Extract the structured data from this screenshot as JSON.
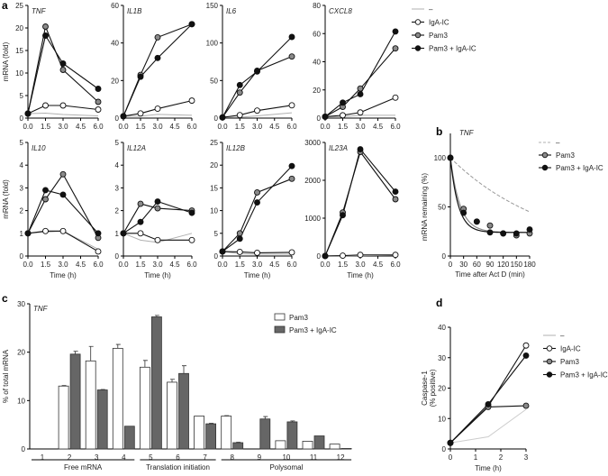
{
  "colors": {
    "none": "#b0b0b0",
    "IgA-IC": "#ffffff",
    "Pam3": "#8a8a8a",
    "Pam3 + IgA-IC": "#111111",
    "bar_pam3": "#ffffff",
    "bar_both": "#666666"
  },
  "panel_labels": [
    "a",
    "b",
    "c",
    "d"
  ],
  "chart_data": [
    {
      "type": "line",
      "panel": "a",
      "gene": "TNF",
      "x": [
        0,
        1.5,
        3,
        6
      ],
      "xticks": [
        "0.0",
        "1.5",
        "3.0",
        "4.5",
        "6.0"
      ],
      "ylim": [
        0,
        25
      ],
      "yticks": [
        0,
        5,
        10,
        15,
        20,
        25
      ],
      "ylabel": "mRNA (fold)",
      "xlabel": "",
      "series": [
        {
          "name": "–",
          "values": [
            1,
            1.1,
            0.8,
            0.5
          ]
        },
        {
          "name": "IgA-IC",
          "values": [
            1,
            2.8,
            2.8,
            1.9
          ]
        },
        {
          "name": "Pam3",
          "values": [
            1,
            20.3,
            10.7,
            3.6
          ]
        },
        {
          "name": "Pam3 + IgA-IC",
          "values": [
            1,
            18.3,
            12.1,
            6.5
          ]
        }
      ]
    },
    {
      "type": "line",
      "panel": "a",
      "gene": "IL1B",
      "x": [
        0,
        1.5,
        3,
        6
      ],
      "xticks": [
        "0.0",
        "1.5",
        "3.0",
        "4.5",
        "6.0"
      ],
      "ylim": [
        0,
        60
      ],
      "yticks": [
        0,
        20,
        40,
        60
      ],
      "ylabel": "",
      "xlabel": "",
      "series": [
        {
          "name": "–",
          "values": [
            1,
            1,
            2,
            1.5
          ]
        },
        {
          "name": "IgA-IC",
          "values": [
            1,
            2.5,
            5,
            9.3
          ]
        },
        {
          "name": "Pam3",
          "values": [
            1,
            23,
            43,
            50
          ]
        },
        {
          "name": "Pam3 + IgA-IC",
          "values": [
            1,
            22,
            32,
            50
          ]
        }
      ]
    },
    {
      "type": "line",
      "panel": "a",
      "gene": "IL6",
      "x": [
        0,
        1.5,
        3,
        6
      ],
      "xticks": [
        "0.0",
        "1.5",
        "3.0",
        "4.5",
        "6.0"
      ],
      "ylim": [
        0,
        150
      ],
      "yticks": [
        0,
        50,
        100,
        150
      ],
      "ylabel": "",
      "xlabel": "",
      "series": [
        {
          "name": "–",
          "values": [
            1,
            1,
            3,
            7
          ]
        },
        {
          "name": "IgA-IC",
          "values": [
            1,
            4,
            10,
            17
          ]
        },
        {
          "name": "Pam3",
          "values": [
            1,
            34,
            63,
            82
          ]
        },
        {
          "name": "Pam3 + IgA-IC",
          "values": [
            1,
            44,
            62,
            108
          ]
        }
      ]
    },
    {
      "type": "line",
      "panel": "a",
      "gene": "CXCL8",
      "x": [
        0,
        1.5,
        3,
        6
      ],
      "xticks": [
        "0.0",
        "1.5",
        "3.0",
        "4.5",
        "6.0"
      ],
      "ylim": [
        0,
        80
      ],
      "yticks": [
        0,
        20,
        40,
        60,
        80
      ],
      "ylabel": "",
      "xlabel": "",
      "series": [
        {
          "name": "–",
          "values": [
            1,
            1,
            2,
            2
          ]
        },
        {
          "name": "IgA-IC",
          "values": [
            1,
            2,
            4,
            14.5
          ]
        },
        {
          "name": "Pam3",
          "values": [
            1,
            8,
            21,
            49.5
          ]
        },
        {
          "name": "Pam3 + IgA-IC",
          "values": [
            1,
            11,
            17,
            61.5
          ]
        }
      ]
    },
    {
      "type": "line",
      "panel": "a",
      "gene": "IL10",
      "x": [
        0,
        1.5,
        3,
        6
      ],
      "xticks": [
        "0.0",
        "1.5",
        "3.0",
        "4.5",
        "6.0"
      ],
      "ylim": [
        0,
        5
      ],
      "yticks": [
        0,
        1,
        2,
        3,
        4,
        5
      ],
      "ylabel": "mRNA (fold)",
      "xlabel": "Time (h)",
      "series": [
        {
          "name": "–",
          "values": [
            1,
            1.05,
            1.1,
            0.3
          ]
        },
        {
          "name": "IgA-IC",
          "values": [
            1,
            1.1,
            1.1,
            0.2
          ]
        },
        {
          "name": "Pam3",
          "values": [
            1,
            2.5,
            3.6,
            0.8
          ]
        },
        {
          "name": "Pam3 + IgA-IC",
          "values": [
            1,
            2.9,
            2.7,
            1
          ]
        }
      ]
    },
    {
      "type": "line",
      "panel": "a",
      "gene": "IL12A",
      "x": [
        0,
        1.5,
        3,
        6
      ],
      "xticks": [
        "0.0",
        "1.5",
        "3.0",
        "4.5",
        "6.0"
      ],
      "ylim": [
        0,
        5
      ],
      "yticks": [
        0,
        1,
        2,
        3,
        4,
        5
      ],
      "ylabel": "",
      "xlabel": "Time (h)",
      "series": [
        {
          "name": "–",
          "values": [
            1,
            0.7,
            0.6,
            1
          ]
        },
        {
          "name": "IgA-IC",
          "values": [
            1,
            1,
            0.7,
            0.7
          ]
        },
        {
          "name": "Pam3",
          "values": [
            1,
            2.3,
            2.1,
            2.0
          ]
        },
        {
          "name": "Pam3 + IgA-IC",
          "values": [
            1,
            1.5,
            2.4,
            1.9
          ]
        }
      ]
    },
    {
      "type": "line",
      "panel": "a",
      "gene": "IL12B",
      "x": [
        0,
        1.5,
        3,
        6
      ],
      "xticks": [
        "0.0",
        "1.5",
        "3.0",
        "4.5",
        "6.0"
      ],
      "ylim": [
        0,
        25
      ],
      "yticks": [
        0,
        5,
        10,
        15,
        20,
        25
      ],
      "ylabel": "",
      "xlabel": "Time (h)",
      "series": [
        {
          "name": "–",
          "values": [
            1,
            0.5,
            0.4,
            0.4
          ]
        },
        {
          "name": "IgA-IC",
          "values": [
            1,
            0.9,
            0.7,
            0.8
          ]
        },
        {
          "name": "Pam3",
          "values": [
            1,
            5,
            14,
            17
          ]
        },
        {
          "name": "Pam3 + IgA-IC",
          "values": [
            1,
            3.8,
            11.8,
            19.8
          ]
        }
      ]
    },
    {
      "type": "line",
      "panel": "a",
      "gene": "IL23A",
      "x": [
        0,
        1.5,
        3,
        6
      ],
      "xticks": [
        "0.0",
        "1.5",
        "3.0",
        "4.5",
        "6.0"
      ],
      "ylim": [
        0,
        3000
      ],
      "yticks": [
        0,
        1000,
        2000,
        3000
      ],
      "ylabel": "",
      "xlabel": "Time (h)",
      "series": [
        {
          "name": "–",
          "values": [
            1,
            5,
            10,
            20
          ]
        },
        {
          "name": "IgA-IC",
          "values": [
            1,
            10,
            30,
            30
          ]
        },
        {
          "name": "Pam3",
          "values": [
            1,
            1150,
            2750,
            1500
          ]
        },
        {
          "name": "Pam3 + IgA-IC",
          "values": [
            1,
            1080,
            2820,
            1700
          ]
        }
      ]
    },
    {
      "type": "scatter",
      "panel": "b",
      "gene": "TNF",
      "x": [
        0,
        30,
        60,
        90,
        120,
        150,
        180
      ],
      "xticks": [
        "0",
        "30",
        "60",
        "90",
        "120",
        "150",
        "180"
      ],
      "ylim": [
        0,
        100
      ],
      "yticks": [
        0,
        50,
        100
      ],
      "ylabel": "mRNA remaining (%)",
      "xlabel": "Time after Act D (min)",
      "series": [
        {
          "name": "–",
          "values": [],
          "fit": "dashed decay to 45% at 180 min"
        },
        {
          "name": "Pam3",
          "values": [
            100,
            48,
            35,
            31,
            23,
            21,
            23
          ]
        },
        {
          "name": "Pam3 + IgA-IC",
          "values": [
            100,
            44,
            35,
            24,
            23,
            23,
            27
          ]
        }
      ]
    },
    {
      "type": "bar",
      "panel": "c",
      "gene": "TNF",
      "categories": [
        "1",
        "2",
        "3",
        "4",
        "5",
        "6",
        "7",
        "8",
        "9",
        "10",
        "11",
        "12"
      ],
      "ylim": [
        0,
        30
      ],
      "yticks": [
        0,
        10,
        20,
        30
      ],
      "ylabel": "% of total mRNA",
      "groups": [
        "Free mRNA",
        "Translation initiation",
        "Polysomal"
      ],
      "series": [
        {
          "name": "Pam3",
          "values": [
            0,
            13,
            18.2,
            20.8,
            16.9,
            13.8,
            6.8,
            6.8,
            0,
            1.7,
            1.6,
            1
          ],
          "errors": [
            0,
            0.1,
            3,
            0.8,
            1.4,
            0.6,
            0,
            0.1,
            0,
            0,
            0,
            0
          ]
        },
        {
          "name": "Pam3 + IgA-IC",
          "values": [
            0,
            19.6,
            12.2,
            4.7,
            27.3,
            15.6,
            5.2,
            1.3,
            6.2,
            5.6,
            2.7,
            0.1
          ],
          "errors": [
            0,
            0.6,
            0.1,
            0,
            0.3,
            1.6,
            0.1,
            0.1,
            0.5,
            0.2,
            0,
            0
          ]
        }
      ]
    },
    {
      "type": "line",
      "panel": "d",
      "gene": "",
      "x": [
        0,
        1.5,
        3
      ],
      "xticks": [
        "0",
        "1",
        "2",
        "3"
      ],
      "xtickvals": [
        0,
        1,
        2,
        3
      ],
      "ylim": [
        0,
        40
      ],
      "yticks": [
        0,
        10,
        20,
        30,
        40
      ],
      "ylabel": "Caspase-1",
      "ylabel2": "(% positive)",
      "xlabel": "Time (h)",
      "series": [
        {
          "name": "–",
          "values": [
            2,
            4,
            13
          ]
        },
        {
          "name": "IgA-IC",
          "values": [
            2,
            14,
            34
          ]
        },
        {
          "name": "Pam3",
          "values": [
            2,
            13.8,
            14.2
          ]
        },
        {
          "name": "Pam3 + IgA-IC",
          "values": [
            2,
            14.7,
            30.7
          ]
        }
      ]
    }
  ],
  "legend_a": [
    "–",
    "IgA-IC",
    "Pam3",
    "Pam3 + IgA-IC"
  ],
  "legend_b": [
    "–",
    "Pam3",
    "Pam3 + IgA-IC"
  ],
  "legend_c": [
    "Pam3",
    "Pam3 + IgA-IC"
  ],
  "legend_d": [
    "–",
    "IgA-IC",
    "Pam3",
    "Pam3 + IgA-IC"
  ]
}
